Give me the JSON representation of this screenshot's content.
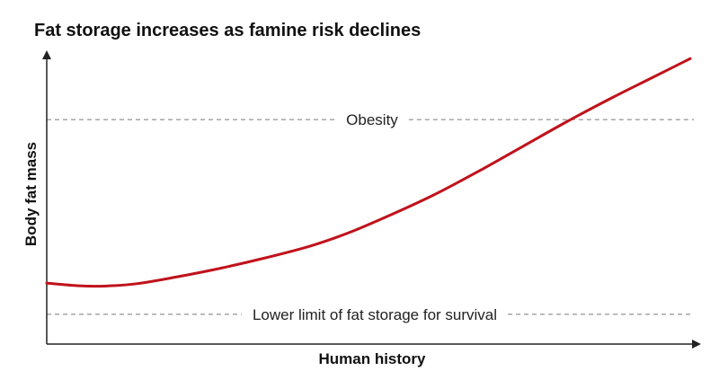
{
  "chart_data": {
    "type": "line",
    "title": "Fat storage increases as famine risk declines",
    "xlabel": "Human history",
    "ylabel": "Body fat mass",
    "xlim": [
      0,
      100
    ],
    "ylim": [
      0,
      100
    ],
    "grid": false,
    "series": [
      {
        "color": "#c0121b",
        "x": [
          0,
          5,
          9,
          14,
          20,
          27,
          34,
          41,
          47,
          53,
          60,
          67,
          74,
          81,
          88,
          94,
          100
        ],
        "y": [
          20.5,
          19.6,
          19.5,
          20.3,
          22.5,
          25.5,
          29,
          33,
          37.5,
          43,
          50,
          58,
          66.5,
          75,
          83,
          89.5,
          96
        ]
      }
    ],
    "reference_lines": [
      {
        "label": "Obesity",
        "y": 75.5
      },
      {
        "label": "Lower limit of fat storage for survival",
        "y": 10
      }
    ]
  }
}
